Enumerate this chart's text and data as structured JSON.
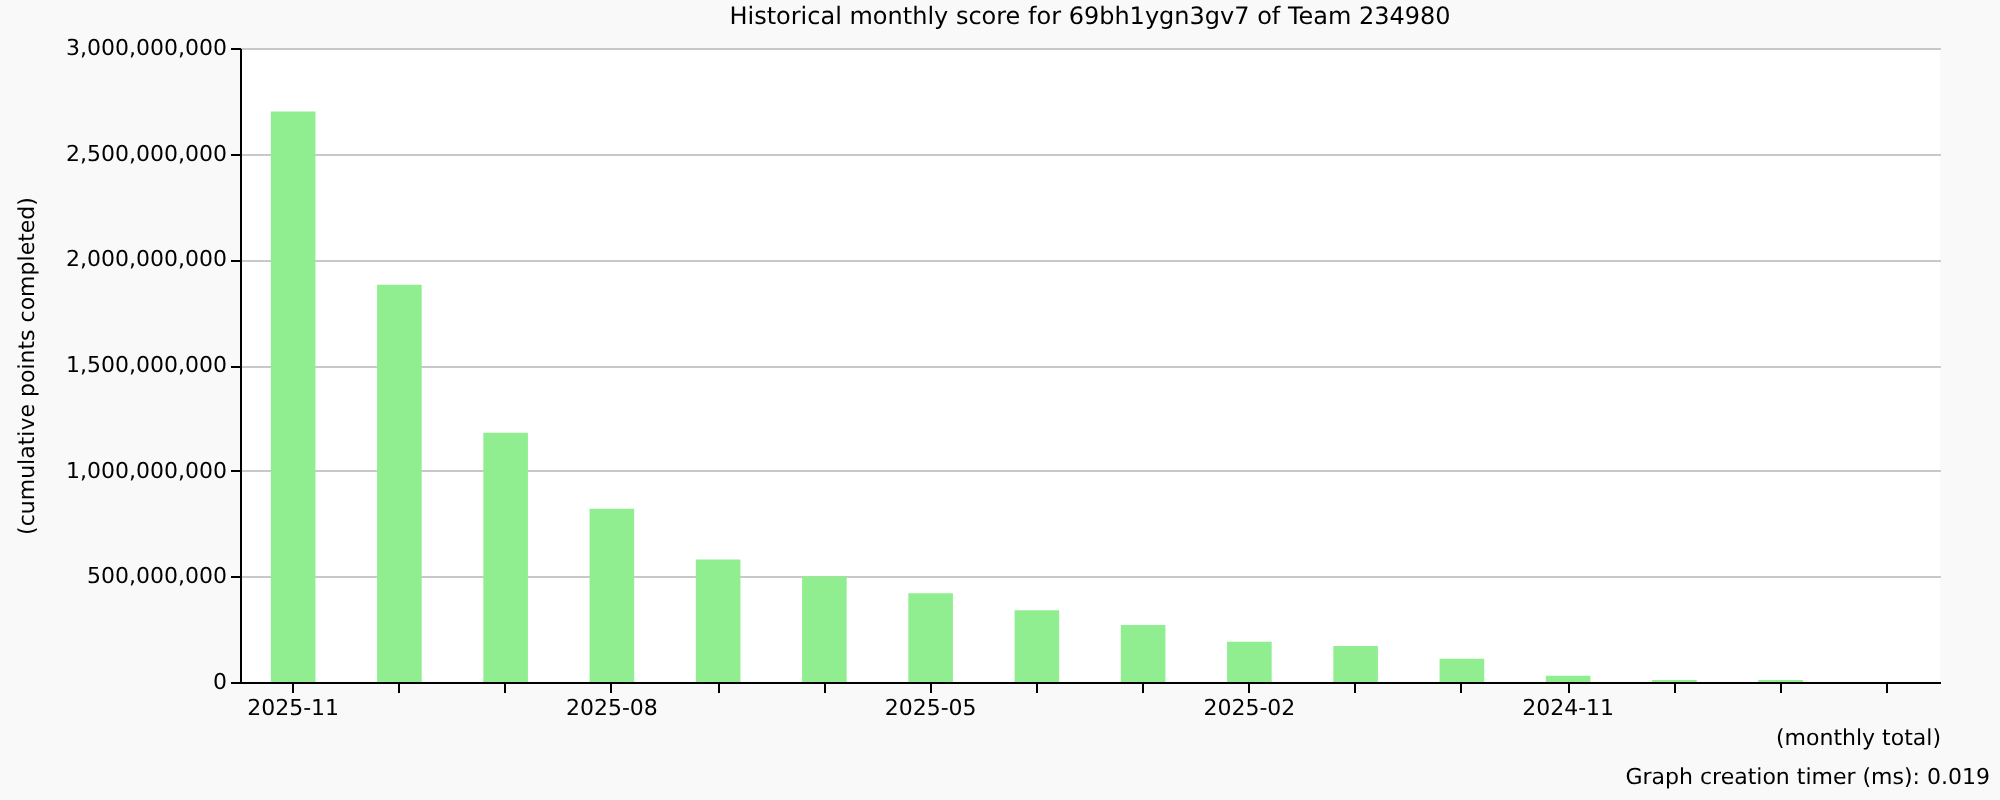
{
  "chart_data": {
    "type": "bar",
    "title": "Historical monthly score for 69bh1ygn3gv7 of Team 234980",
    "xlabel": "(monthly total)",
    "ylabel": "(cumulative points completed)",
    "categories": [
      "2025-11",
      null,
      null,
      "2025-08",
      null,
      null,
      "2025-05",
      null,
      null,
      "2025-02",
      null,
      null,
      "2024-11",
      null,
      null,
      null
    ],
    "values": [
      2700000000,
      1880000000,
      1180000000,
      820000000,
      580000000,
      500000000,
      420000000,
      340000000,
      270000000,
      190000000,
      170000000,
      110000000,
      30000000,
      10000000,
      10000000,
      null
    ],
    "color": "#90ee90",
    "ylim": [
      0,
      3000000000
    ],
    "yticks": [
      {
        "value": 0,
        "label": "0"
      },
      {
        "value": 500000000,
        "label": "500,000,000"
      },
      {
        "value": 1000000000,
        "label": "1,000,000,000"
      },
      {
        "value": 1500000000,
        "label": "1,500,000,000"
      },
      {
        "value": 2000000000,
        "label": "2,000,000,000"
      },
      {
        "value": 2500000000,
        "label": "2,500,000,000"
      },
      {
        "value": 3000000000,
        "label": "3,000,000,000"
      }
    ],
    "grid": "y",
    "annotations": [
      "Graph creation timer (ms): 0.019"
    ]
  }
}
